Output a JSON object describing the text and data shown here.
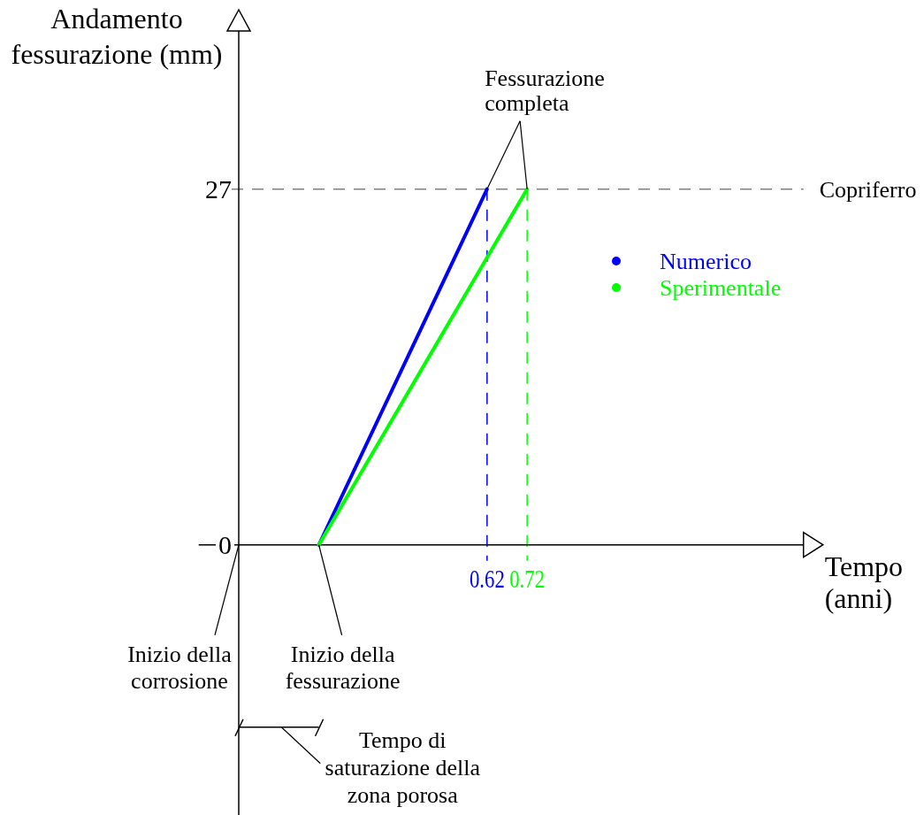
{
  "chart_data": {
    "type": "line",
    "xlabel": "Tempo (anni)",
    "ylabel": "Andamento fessurazione (mm)",
    "series": [
      {
        "name": "Numerico",
        "color": "#0000ff",
        "x": [
          0.2,
          0.62
        ],
        "values": [
          0,
          27
        ]
      },
      {
        "name": "Sperimentale",
        "color": "#00ff00",
        "x": [
          0.2,
          0.72
        ],
        "values": [
          0,
          27
        ]
      }
    ],
    "xlim": [
      -0.1,
      1.41
    ],
    "ylim": [
      -20.5,
      39
    ],
    "xticks": [
      0.62,
      0.72
    ],
    "yticks": [
      0,
      27
    ],
    "ref_lines": [
      {
        "axis": "y",
        "value": 27,
        "label": "Copriferro",
        "color": "#808080",
        "line_style": "dashed"
      },
      {
        "axis": "x",
        "value": 0.62,
        "color": "#0000ff",
        "line_style": "dashed"
      },
      {
        "axis": "x",
        "value": 0.72,
        "color": "#00ff00",
        "line_style": "dashed"
      }
    ],
    "annotations": [
      {
        "text": "Fessurazione completa",
        "x": 0.72,
        "y": 27
      },
      "Inizio della corrosione",
      {
        "text": "Inizio della fessurazione",
        "x": 0.2,
        "y": 0
      },
      "Tempo di saturazione della zona porosa"
    ],
    "legend": "right"
  }
}
